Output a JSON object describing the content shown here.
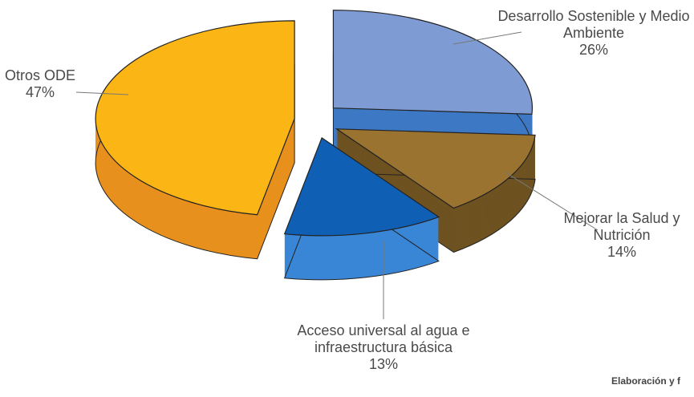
{
  "chart_data": {
    "type": "pie3d",
    "categories": [
      "Desarrollo Sostenible y Medio Ambiente",
      "Mejorar la Salud y Nutrición",
      "Acceso universal al agua e infraestructura básica",
      "Otros ODE"
    ],
    "values": [
      26,
      14,
      13,
      47
    ],
    "value_labels": [
      "26%",
      "14%",
      "13%",
      "47%"
    ],
    "colors": [
      "#7f9bd4",
      "#9b7330",
      "#0f5fb5",
      "#fbb514"
    ],
    "side_colors": [
      "#3c78c4",
      "#6e5221",
      "#3a86d6",
      "#e8901e"
    ],
    "footnote": "Elaboración y f"
  }
}
